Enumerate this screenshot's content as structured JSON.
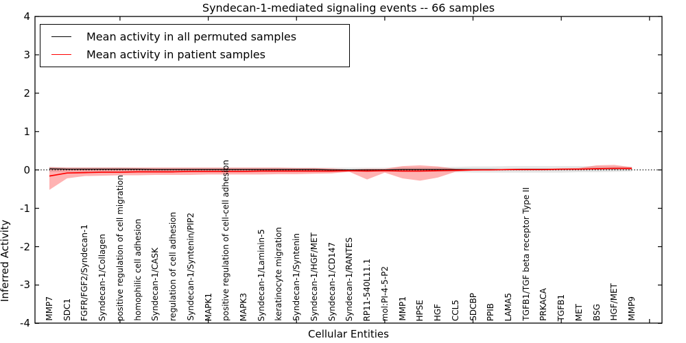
{
  "title": "Syndecan-1-mediated signaling events -- 66 samples",
  "axes": {
    "xlabel": "Cellular Entities",
    "ylabel": "Inferred Activity",
    "ytick_labels": [
      "4",
      "3",
      "2",
      "1",
      "0",
      "-1",
      "-2",
      "-3",
      "-4"
    ]
  },
  "legend": {
    "items": [
      {
        "label": "Mean activity in all permuted samples",
        "color": "#000000"
      },
      {
        "label": "Mean activity in patient samples",
        "color": "#ff0000"
      }
    ]
  },
  "chart_data": {
    "type": "line",
    "title": "Syndecan-1-mediated signaling events -- 66 samples",
    "xlabel": "Cellular Entities",
    "ylabel": "Inferred Activity",
    "ylim": [
      -4,
      4
    ],
    "yticks": [
      -4,
      -3,
      -2,
      -1,
      0,
      1,
      2,
      3,
      4
    ],
    "x_major_ticks": [
      5,
      10,
      15,
      20,
      25,
      30,
      35
    ],
    "grid": false,
    "legend_position": "upper left",
    "reference_line": {
      "y": 0,
      "style": "dotted",
      "color": "#000000"
    },
    "categories": [
      "MMP7",
      "SDC1",
      "FGFR/FGF2/Syndecan-1",
      "Syndecan-1/Collagen",
      "positive regulation of cell migration",
      "homophilic cell adhesion",
      "Syndecan-1/CASK",
      "regulation of cell adhesion",
      "Syndecan-1/Syntenin/PIP2",
      "MAPK1",
      "positive regulation of cell-cell adhesion",
      "MAPK3",
      "Syndecan-1/Laminin-5",
      "keratinocyte migration",
      "Syndecan-1/Syntenin",
      "Syndecan-1/HGF/MET",
      "Syndecan-1/CD147",
      "Syndecan-1/RANTES",
      "RP11-540L11.1",
      "mol:PI-4-5-P2",
      "MMP1",
      "HPSE",
      "HGF",
      "CCL5",
      "SDCBP",
      "PPIB",
      "LAMA5",
      "TGFB1/TGF beta receptor Type II",
      "PRKACA",
      "TGFB1",
      "MET",
      "BSG",
      "HGF/MET",
      "MMP9"
    ],
    "series": [
      {
        "name": "Mean activity in all permuted samples",
        "color": "#000000",
        "band_color": "rgba(0,0,0,0.10)",
        "values": [
          0.03,
          0.02,
          0.02,
          0.02,
          0.02,
          0.02,
          0.01,
          0.01,
          0.01,
          0.01,
          0.01,
          0.01,
          0.01,
          0.01,
          0.01,
          0.01,
          0.0,
          0.0,
          0.0,
          0.0,
          0.01,
          0.01,
          0.01,
          0.01,
          0.01,
          0.01,
          0.01,
          0.02,
          0.02,
          0.02,
          0.02,
          0.03,
          0.03,
          0.04
        ],
        "band_lo": [
          -0.05,
          -0.05,
          -0.05,
          -0.05,
          -0.05,
          -0.05,
          -0.05,
          -0.05,
          -0.05,
          -0.05,
          -0.05,
          -0.05,
          -0.05,
          -0.05,
          -0.05,
          -0.05,
          -0.05,
          -0.05,
          -0.05,
          -0.05,
          -0.05,
          -0.05,
          -0.05,
          -0.06,
          -0.07,
          -0.07,
          -0.07,
          -0.07,
          -0.07,
          -0.07,
          -0.06,
          -0.06,
          -0.05,
          -0.04
        ],
        "band_hi": [
          0.08,
          0.07,
          0.07,
          0.07,
          0.07,
          0.06,
          0.06,
          0.06,
          0.06,
          0.06,
          0.06,
          0.06,
          0.06,
          0.06,
          0.06,
          0.06,
          0.06,
          0.06,
          0.06,
          0.06,
          0.07,
          0.07,
          0.07,
          0.08,
          0.09,
          0.09,
          0.1,
          0.1,
          0.1,
          0.1,
          0.1,
          0.09,
          0.09,
          0.08
        ]
      },
      {
        "name": "Mean activity in patient samples",
        "color": "#ff0000",
        "band_color": "rgba(255,0,0,0.30)",
        "values": [
          -0.16,
          -0.08,
          -0.07,
          -0.06,
          -0.06,
          -0.05,
          -0.05,
          -0.05,
          -0.04,
          -0.04,
          -0.04,
          -0.04,
          -0.03,
          -0.03,
          -0.03,
          -0.03,
          -0.03,
          -0.02,
          -0.03,
          -0.02,
          -0.03,
          -0.03,
          -0.02,
          -0.01,
          0.0,
          0.0,
          0.01,
          0.01,
          0.01,
          0.02,
          0.02,
          0.03,
          0.04,
          0.04
        ],
        "band_lo": [
          -0.52,
          -0.22,
          -0.16,
          -0.15,
          -0.14,
          -0.14,
          -0.13,
          -0.13,
          -0.13,
          -0.12,
          -0.12,
          -0.12,
          -0.12,
          -0.11,
          -0.11,
          -0.1,
          -0.09,
          -0.05,
          -0.25,
          -0.07,
          -0.22,
          -0.28,
          -0.2,
          -0.05,
          -0.02,
          -0.01,
          -0.01,
          -0.01,
          -0.01,
          0.0,
          0.01,
          0.01,
          0.02,
          0.01
        ],
        "band_hi": [
          0.07,
          0.06,
          0.06,
          0.06,
          0.06,
          0.06,
          0.06,
          0.06,
          0.06,
          0.06,
          0.06,
          0.06,
          0.06,
          0.06,
          0.05,
          0.05,
          0.04,
          0.01,
          0.03,
          0.03,
          0.1,
          0.12,
          0.09,
          0.03,
          0.02,
          0.02,
          0.02,
          0.03,
          0.03,
          0.04,
          0.05,
          0.12,
          0.13,
          0.07
        ]
      }
    ]
  }
}
